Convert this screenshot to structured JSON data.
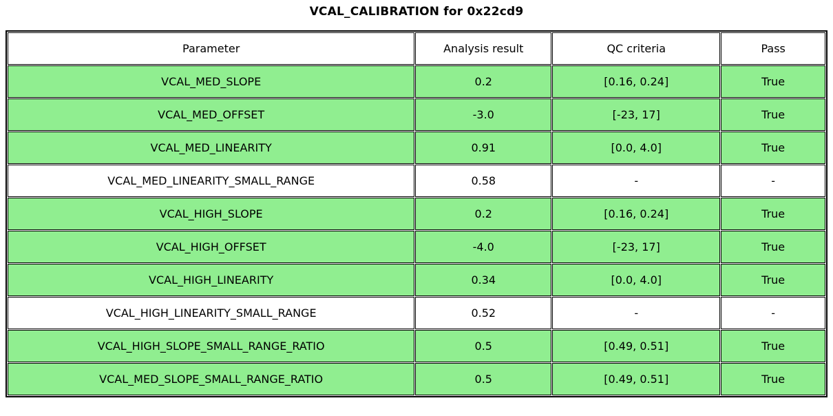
{
  "title": "VCAL_CALIBRATION for 0x22cd9",
  "colors": {
    "pass_row_bg": "#90EE90",
    "neutral_row_bg": "#FFFFFF",
    "border": "#000000",
    "text": "#000000"
  },
  "chart_data": {
    "type": "table",
    "title": "VCAL_CALIBRATION for 0x22cd9",
    "columns": [
      "Parameter",
      "Analysis result",
      "QC criteria",
      "Pass"
    ],
    "rows": [
      {
        "parameter": "VCAL_MED_SLOPE",
        "analysis_result": "0.2",
        "qc_criteria": "[0.16, 0.24]",
        "pass": "True",
        "highlight": true
      },
      {
        "parameter": "VCAL_MED_OFFSET",
        "analysis_result": "-3.0",
        "qc_criteria": "[-23, 17]",
        "pass": "True",
        "highlight": true
      },
      {
        "parameter": "VCAL_MED_LINEARITY",
        "analysis_result": "0.91",
        "qc_criteria": "[0.0, 4.0]",
        "pass": "True",
        "highlight": true
      },
      {
        "parameter": "VCAL_MED_LINEARITY_SMALL_RANGE",
        "analysis_result": "0.58",
        "qc_criteria": "-",
        "pass": "-",
        "highlight": false
      },
      {
        "parameter": "VCAL_HIGH_SLOPE",
        "analysis_result": "0.2",
        "qc_criteria": "[0.16, 0.24]",
        "pass": "True",
        "highlight": true
      },
      {
        "parameter": "VCAL_HIGH_OFFSET",
        "analysis_result": "-4.0",
        "qc_criteria": "[-23, 17]",
        "pass": "True",
        "highlight": true
      },
      {
        "parameter": "VCAL_HIGH_LINEARITY",
        "analysis_result": "0.34",
        "qc_criteria": "[0.0, 4.0]",
        "pass": "True",
        "highlight": true
      },
      {
        "parameter": "VCAL_HIGH_LINEARITY_SMALL_RANGE",
        "analysis_result": "0.52",
        "qc_criteria": "-",
        "pass": "-",
        "highlight": false
      },
      {
        "parameter": "VCAL_HIGH_SLOPE_SMALL_RANGE_RATIO",
        "analysis_result": "0.5",
        "qc_criteria": "[0.49, 0.51]",
        "pass": "True",
        "highlight": true
      },
      {
        "parameter": "VCAL_MED_SLOPE_SMALL_RANGE_RATIO",
        "analysis_result": "0.5",
        "qc_criteria": "[0.49, 0.51]",
        "pass": "True",
        "highlight": true
      }
    ]
  }
}
